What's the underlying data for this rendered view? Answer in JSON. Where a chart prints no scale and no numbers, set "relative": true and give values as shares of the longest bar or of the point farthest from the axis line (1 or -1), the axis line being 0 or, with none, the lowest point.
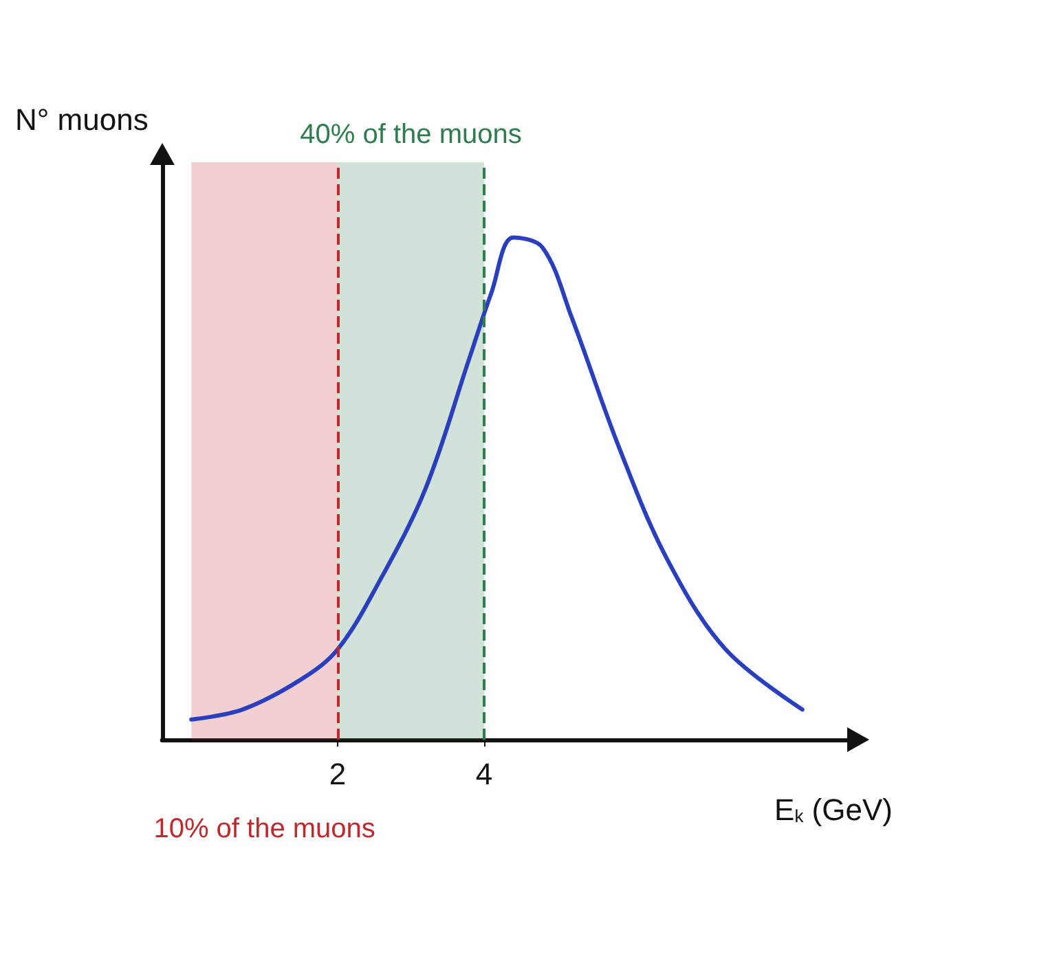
{
  "chart_data": {
    "type": "line",
    "relative": true,
    "xlabel": "E$_{k}$ (GeV)",
    "ylabel": "N° muons",
    "xlim": [
      -0.4,
      9
    ],
    "xticks": [
      2,
      4
    ],
    "series": [
      {
        "color": "#2a3fbf",
        "x": [
          0,
          0.7,
          1.5,
          2,
          2.55,
          3.2,
          3.8,
          4.1,
          4.4,
          4.8,
          5.2,
          5.85,
          6.5,
          7.3,
          8.35
        ],
        "values": [
          0.04,
          0.06,
          0.12,
          0.18,
          0.31,
          0.5,
          0.76,
          0.89,
          1.0,
          0.98,
          0.84,
          0.58,
          0.36,
          0.18,
          0.06
        ]
      }
    ],
    "bands": [
      {
        "axis": "x",
        "from": 0,
        "to": 2,
        "label": "10% of the muons",
        "color": "#c0282d"
      },
      {
        "axis": "x",
        "from": 2,
        "to": 4,
        "label": "40% of the muons",
        "color": "#2e7d4f"
      }
    ],
    "ref_lines": [
      {
        "axis": "x",
        "value": 2,
        "color": "#c0282d",
        "line_style": "dashed"
      },
      {
        "axis": "x",
        "value": 4,
        "color": "#2e7d4f",
        "line_style": "dashed"
      }
    ],
    "grid": false,
    "marker": "none",
    "line_style": "solid"
  }
}
